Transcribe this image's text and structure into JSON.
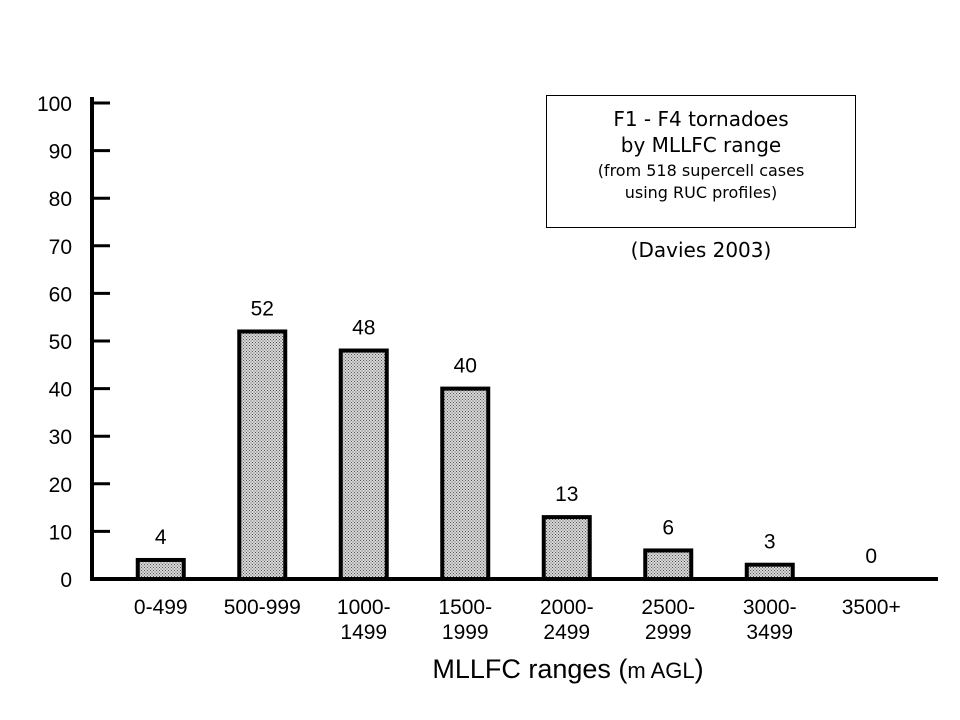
{
  "chart_data": {
    "type": "bar",
    "categories": [
      [
        "0-499"
      ],
      [
        "500-999"
      ],
      [
        "1000-",
        "1499"
      ],
      [
        "1500-",
        "1999"
      ],
      [
        "2000-",
        "2499"
      ],
      [
        "2500-",
        "2999"
      ],
      [
        "3000-",
        "3499"
      ],
      [
        "3500+"
      ]
    ],
    "values": [
      4,
      52,
      48,
      40,
      13,
      6,
      3,
      0
    ],
    "data_labels": [
      "4",
      "52",
      "48",
      "40",
      "13",
      "6",
      "3",
      "0"
    ],
    "y_ticks": [
      0,
      10,
      20,
      30,
      40,
      50,
      60,
      70,
      80,
      90,
      100
    ],
    "ylim": [
      0,
      100
    ],
    "xlabel_main": "MLLFC ranges (",
    "xlabel_unit": "m AGL",
    "xlabel_close": ")",
    "ylabel": "",
    "grid": false,
    "bar_fill": "#b8b8b8",
    "bar_stroke": "#000000"
  },
  "legend": {
    "line1": "F1 - F4 tornadoes",
    "line2": "by MLLFC range",
    "line3": "(from 518 supercell cases",
    "line4": "using RUC profiles)",
    "citation": "(Davies 2003)"
  }
}
